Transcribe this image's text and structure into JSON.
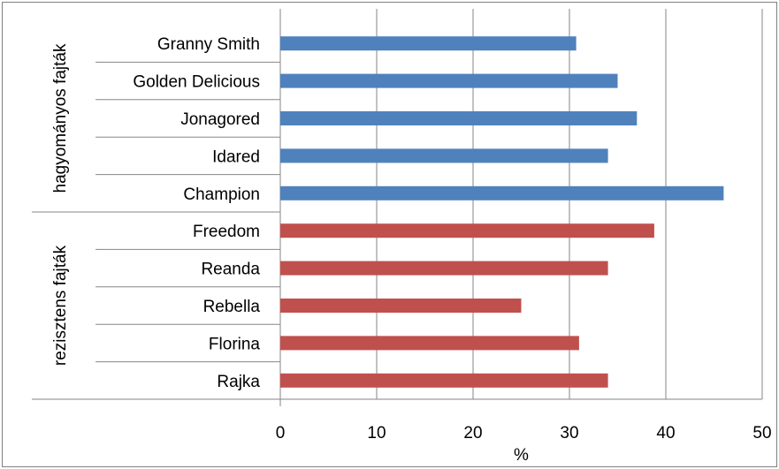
{
  "chart_data": {
    "type": "bar",
    "orientation": "horizontal",
    "xlabel": "%",
    "xlim": [
      0,
      50
    ],
    "xticks": [
      0,
      10,
      20,
      30,
      40,
      50
    ],
    "grid": "vertical major gridlines",
    "legend": "none",
    "groups": [
      {
        "name": "hagyományos fajták",
        "color": "#4f81bd",
        "categories": [
          "Granny Smith",
          "Golden Delicious",
          "Jonagored",
          "Idared",
          "Champion"
        ],
        "values": [
          30.7,
          35,
          37,
          34,
          46
        ]
      },
      {
        "name": "rezisztens  fajták",
        "color": "#c0504d",
        "categories": [
          "Freedom",
          "Reanda",
          "Rebella",
          "Florina",
          "Rajka"
        ],
        "values": [
          38.8,
          34,
          25,
          31,
          34
        ]
      }
    ]
  }
}
